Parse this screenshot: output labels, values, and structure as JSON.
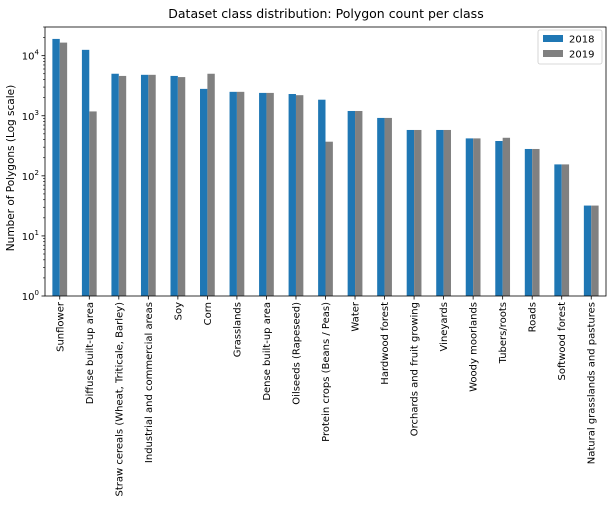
{
  "chart_data": {
    "type": "bar",
    "title": "Dataset class distribution: Polygon count per class",
    "xlabel": "",
    "ylabel": "Number of Polygons (Log scale)",
    "yscale": "log",
    "ylim": [
      1,
      30000
    ],
    "yticks": [
      {
        "value": 1,
        "base": "10",
        "exp": "0"
      },
      {
        "value": 10,
        "base": "10",
        "exp": "1"
      },
      {
        "value": 100,
        "base": "10",
        "exp": "2"
      },
      {
        "value": 1000,
        "base": "10",
        "exp": "3"
      },
      {
        "value": 10000,
        "base": "10",
        "exp": "4"
      }
    ],
    "grid": false,
    "legend_position": "top-right",
    "categories": [
      "Sunflower",
      "Diffuse built-up area",
      "Straw cereals (Wheat, Triticale, Barley)",
      "Industrial and commercial areas",
      "Soy",
      "Corn",
      "Grasslands",
      "Dense built-up area",
      "Oilseeds (Rapeseed)",
      "Protein crops (Beans / Peas)",
      "Water",
      "Hardwood forest",
      "Orchards and fruit growing",
      "Vineyards",
      "Woody moorlands",
      "Tubers/roots",
      "Roads",
      "Softwood forest",
      "Natural grasslands and pastures"
    ],
    "series": [
      {
        "name": "2018",
        "color": "#1f77b4",
        "values": [
          19000,
          12500,
          5000,
          4800,
          4600,
          2800,
          2500,
          2400,
          2300,
          1850,
          1200,
          920,
          580,
          580,
          420,
          380,
          280,
          155,
          32
        ]
      },
      {
        "name": "2019",
        "color": "#808080",
        "values": [
          16500,
          1180,
          4600,
          4800,
          4400,
          5000,
          2500,
          2400,
          2200,
          370,
          1200,
          920,
          580,
          580,
          420,
          430,
          280,
          155,
          32
        ]
      }
    ]
  }
}
